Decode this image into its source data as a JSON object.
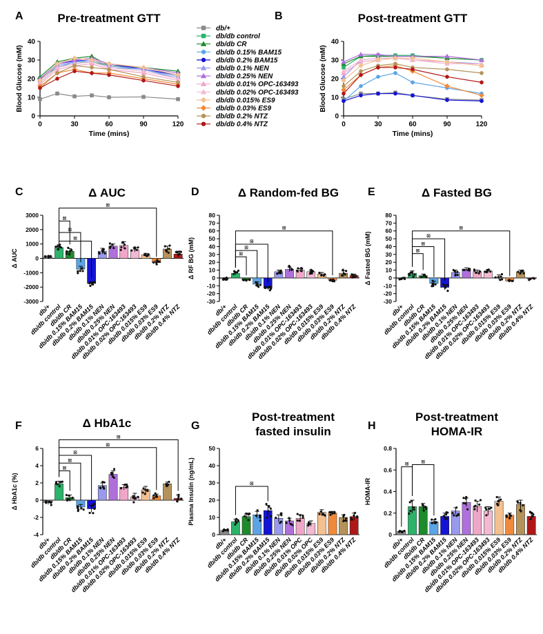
{
  "series_names": [
    "db/+",
    "db/db control",
    "db/db CR",
    "db/db 0.15% BAM15",
    "db/db 0.2% BAM15",
    "db/db 0.1% NEN",
    "db/db 0.25% NEN",
    "db/db 0.01% OPC-163493",
    "db/db 0.02% OPC-163493",
    "db/db 0.015% ES9",
    "db/db 0.03% ES9",
    "db/db 0.2% NTZ",
    "db/db 0.4% NTZ"
  ],
  "series_colors": [
    "#8a8a8a",
    "#2bb36a",
    "#1d8a2c",
    "#5ba4e6",
    "#1414d6",
    "#9999ee",
    "#b070dc",
    "#f0a6c8",
    "#f3b9d3",
    "#f5c090",
    "#f08a3a",
    "#b4925a",
    "#b01818"
  ],
  "series_markers": [
    "square",
    "square",
    "triangle",
    "circle",
    "circle",
    "triangle",
    "triangle",
    "triangle",
    "triangle",
    "diamond",
    "diamond",
    "circle",
    "circle"
  ],
  "bar_axis_labels": [
    "db/+",
    "db/db control",
    "db/db CR",
    "db/db 0.15% BAM15",
    "db/db 0.2% BAM15",
    "db/db 0.1% NEN",
    "db/db 0.25% NEN",
    "db/db 0.01% OPC-163493",
    "db/db 0.02% OPC-163493",
    "db/db 0.015% ES9",
    "db/db 0.03% ES9",
    "db/db 0.2% NTZ",
    "db/db 0.4% NTZ"
  ],
  "bar_axis_labels_short": [
    "db/+",
    "db/db control",
    "db/db CR",
    "db/db 0.15% BAM15",
    "db/db 0.2% BAM15",
    "db/db 0.1% NEN",
    "db/db 0.25% NEN",
    "db/db 0.01% OPC",
    "db/db 0.02% OPC",
    "db/db 0.015% ES9",
    "db/db 0.03% ES9",
    "db/db 0.2% NTZ",
    "db/db 0.4% NTZ"
  ],
  "sig_mark": "⊠",
  "chart_data": [
    {
      "panel": "A",
      "type": "line",
      "title": "Pre-treatment GTT",
      "xlabel": "Time (mins)",
      "ylabel": "Blood Glucose (mM)",
      "x": [
        0,
        15,
        30,
        45,
        60,
        90,
        120
      ],
      "xticks": [
        0,
        30,
        60,
        90,
        120
      ],
      "yticks": [
        0,
        10,
        20,
        30,
        40
      ],
      "xlim": [
        0,
        120
      ],
      "ylim": [
        0,
        40
      ],
      "series": [
        {
          "name": "db/+",
          "values": [
            9,
            12,
            10.5,
            11,
            10,
            10.2,
            9
          ]
        },
        {
          "name": "db/db control",
          "values": [
            20,
            26,
            28,
            29,
            27,
            25,
            22
          ]
        },
        {
          "name": "db/db CR",
          "values": [
            21,
            29,
            31,
            32,
            27,
            26,
            24
          ]
        },
        {
          "name": "db/db 0.15% BAM15",
          "values": [
            18,
            26,
            29,
            29,
            26,
            25,
            20
          ]
        },
        {
          "name": "db/db 0.2% BAM15",
          "values": [
            19,
            28,
            29.5,
            30,
            28,
            25,
            22
          ]
        },
        {
          "name": "db/db 0.1% NEN",
          "values": [
            19,
            27,
            29,
            30,
            27,
            25,
            21
          ]
        },
        {
          "name": "db/db 0.25% NEN",
          "values": [
            20,
            28,
            30,
            31,
            28,
            26,
            23
          ]
        },
        {
          "name": "db/db 0.01% OPC-163493",
          "values": [
            17,
            25,
            27,
            28,
            25,
            23,
            19
          ]
        },
        {
          "name": "db/db 0.02% OPC-163493",
          "values": [
            18,
            26,
            28,
            29,
            26,
            24,
            20
          ]
        },
        {
          "name": "db/db 0.015% ES9",
          "values": [
            19,
            28,
            31,
            30,
            28,
            26,
            22
          ]
        },
        {
          "name": "db/db 0.03% ES9",
          "values": [
            16,
            23,
            25,
            23,
            23,
            20,
            17
          ]
        },
        {
          "name": "db/db 0.2% NTZ",
          "values": [
            15,
            23,
            27,
            26,
            25,
            21,
            18
          ]
        },
        {
          "name": "db/db 0.4% NTZ",
          "values": [
            15,
            20,
            24,
            23,
            22,
            19,
            16
          ]
        }
      ]
    },
    {
      "panel": "B",
      "type": "line",
      "title": "Post-treatment GTT",
      "xlabel": "Time (mins)",
      "ylabel": "Blood Glucose (mM)",
      "x": [
        0,
        15,
        30,
        45,
        60,
        90,
        120
      ],
      "xticks": [
        0,
        30,
        60,
        90,
        120
      ],
      "yticks": [
        0,
        10,
        20,
        30,
        40
      ],
      "xlim": [
        0,
        120
      ],
      "ylim": [
        0,
        40
      ],
      "series": [
        {
          "name": "db/+",
          "values": [
            9,
            12,
            12,
            12.5,
            11,
            9,
            8.5
          ]
        },
        {
          "name": "db/db control",
          "values": [
            26,
            32,
            32.5,
            32.5,
            32.5,
            31,
            30
          ]
        },
        {
          "name": "db/db CR",
          "values": [
            28,
            32,
            32,
            32,
            32,
            31,
            30
          ]
        },
        {
          "name": "db/db 0.15% BAM15",
          "values": [
            8,
            16,
            21,
            23,
            18,
            15,
            12
          ]
        },
        {
          "name": "db/db 0.2% BAM15",
          "values": [
            8,
            11,
            12,
            12,
            11,
            8.5,
            8
          ]
        },
        {
          "name": "db/db 0.1% NEN",
          "values": [
            21,
            30,
            31,
            31,
            30,
            29,
            28
          ]
        },
        {
          "name": "db/db 0.25% NEN",
          "values": [
            29,
            33,
            33,
            32,
            32,
            32,
            30
          ]
        },
        {
          "name": "db/db 0.01% OPC-163493",
          "values": [
            23,
            29,
            30,
            31,
            30,
            29,
            27
          ]
        },
        {
          "name": "db/db 0.02% OPC-163493",
          "values": [
            24,
            30,
            31,
            31,
            30,
            28,
            28
          ]
        },
        {
          "name": "db/db 0.015% ES9",
          "values": [
            19,
            27,
            30,
            31,
            31,
            29,
            27
          ]
        },
        {
          "name": "db/db 0.03% ES9",
          "values": [
            14,
            22,
            26,
            27,
            24,
            16,
            11
          ]
        },
        {
          "name": "db/db 0.2% NTZ",
          "values": [
            16,
            24,
            27,
            28,
            26,
            25,
            23
          ]
        },
        {
          "name": "db/db 0.4% NTZ",
          "values": [
            12,
            22,
            26,
            26,
            25,
            21,
            18
          ]
        }
      ]
    },
    {
      "panel": "C",
      "type": "bar",
      "title": "Δ AUC",
      "ylabel": "Δ AUC",
      "yticks": [
        -3000,
        -2000,
        -1000,
        0,
        1000,
        2000,
        3000
      ],
      "ylim": [
        -3000,
        3000
      ],
      "values": [
        100,
        750,
        500,
        -750,
        -1750,
        500,
        850,
        900,
        600,
        250,
        -300,
        650,
        300
      ],
      "errors": [
        60,
        200,
        180,
        200,
        120,
        200,
        150,
        250,
        150,
        100,
        120,
        200,
        200
      ],
      "sig_brackets": [
        [
          1,
          2,
          2600
        ],
        [
          1,
          3,
          1800
        ],
        [
          1,
          4,
          1200
        ],
        [
          1,
          10,
          3500
        ]
      ]
    },
    {
      "panel": "D",
      "type": "bar",
      "title": "Δ Random-fed BG",
      "ylabel": "Δ RF BG (mM)",
      "yticks": [
        -30,
        -20,
        -10,
        0,
        10,
        20,
        30,
        40,
        50,
        60,
        70,
        80
      ],
      "ylim": [
        -30,
        80
      ],
      "values": [
        -1,
        6,
        -3,
        -8,
        -13,
        8,
        11,
        10,
        8,
        5,
        -3,
        6,
        3
      ],
      "errors": [
        1,
        2,
        1,
        3,
        2,
        2,
        3,
        2,
        2,
        2,
        1,
        3,
        2
      ],
      "sig_brackets": [
        [
          1,
          2,
          27
        ],
        [
          1,
          3,
          35
        ],
        [
          1,
          4,
          43
        ],
        [
          1,
          10,
          60
        ]
      ]
    },
    {
      "panel": "E",
      "type": "bar",
      "title": "Δ Fasted BG",
      "ylabel": "Δ Fasted BG (mM)",
      "yticks": [
        -30,
        -20,
        -10,
        0,
        10,
        20,
        30,
        40,
        50,
        60,
        70,
        80
      ],
      "ylim": [
        -30,
        80
      ],
      "values": [
        -1,
        6,
        3,
        -7,
        -12,
        7,
        11,
        8,
        9,
        1,
        -4,
        8,
        -1
      ],
      "errors": [
        1,
        3,
        2,
        3,
        3,
        3,
        2,
        2,
        2,
        3,
        1,
        2,
        1
      ],
      "sig_brackets": [
        [
          1,
          2,
          31
        ],
        [
          1,
          3,
          40
        ],
        [
          1,
          4,
          50
        ],
        [
          1,
          10,
          60
        ]
      ]
    },
    {
      "panel": "F",
      "type": "bar",
      "title": "Δ HbA1c",
      "ylabel": "Δ HbA1c (%)",
      "yticks": [
        -4,
        -2,
        0,
        2,
        4,
        6
      ],
      "ylim": [
        -4,
        6
      ],
      "values": [
        -0.3,
        1.9,
        0.3,
        -0.8,
        -1.0,
        1.7,
        3.0,
        1.5,
        0.4,
        1.2,
        0.5,
        1.9,
        0.2
      ],
      "errors": [
        0.2,
        0.3,
        0.3,
        0.3,
        0.4,
        0.3,
        0.4,
        0.3,
        0.4,
        0.4,
        0.2,
        0.2,
        0.4
      ],
      "sig_brackets": [
        [
          1,
          2,
          3.4
        ],
        [
          1,
          3,
          4.3
        ],
        [
          1,
          4,
          5.2
        ],
        [
          1,
          10,
          6.1
        ],
        [
          1,
          12,
          7.0
        ]
      ]
    },
    {
      "panel": "G",
      "type": "bar",
      "title": "Post-treatment fasted insulin",
      "ylabel": "Plasma Insulin (ng/mL)",
      "yticks": [
        0,
        10,
        20,
        30,
        40,
        50
      ],
      "ylim": [
        0,
        50
      ],
      "values": [
        2.5,
        7.5,
        10.5,
        11.5,
        14,
        9.5,
        8,
        9.5,
        6.5,
        13,
        12.5,
        10,
        10.5
      ],
      "errors": [
        0.5,
        1.5,
        1.5,
        2,
        3,
        2,
        1.5,
        2,
        1.5,
        1.5,
        1,
        1.5,
        2
      ],
      "sig_brackets": [
        [
          1,
          4,
          28
        ]
      ]
    },
    {
      "panel": "H",
      "type": "bar",
      "title": "Post-treatment HOMA-IR",
      "ylabel": "HOMA-IR",
      "yticks": [
        0.0,
        0.2,
        0.4,
        0.6,
        0.8
      ],
      "ylim": [
        0,
        0.8
      ],
      "values": [
        0.03,
        0.26,
        0.26,
        0.12,
        0.17,
        0.22,
        0.3,
        0.26,
        0.22,
        0.31,
        0.18,
        0.28,
        0.17
      ],
      "errors": [
        0.005,
        0.06,
        0.03,
        0.02,
        0.03,
        0.03,
        0.04,
        0.05,
        0.04,
        0.04,
        0.02,
        0.04,
        0.03
      ],
      "sig_brackets": [
        [
          0,
          1,
          0.63
        ],
        [
          1,
          3,
          0.65
        ]
      ]
    }
  ],
  "panel_letters": {
    "A": "A",
    "B": "B",
    "C": "C",
    "D": "D",
    "E": "E",
    "F": "F",
    "G": "G",
    "H": "H"
  }
}
